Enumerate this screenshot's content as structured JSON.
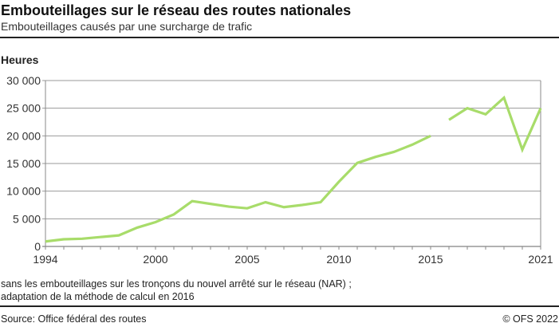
{
  "header": {
    "title": "Embouteillages sur le réseau des routes nationales",
    "subtitle": "Embouteillages causés par une surcharge de trafic"
  },
  "footer": {
    "note_line1": "sans les embouteillages sur les tronçons du nouvel arrêté sur le réseau (NAR) ;",
    "note_line2": "adaptation de la méthode de calcul en 2016",
    "source": "Source: Office fédéral des routes",
    "copyright": "© OFS 2022"
  },
  "chart_data": {
    "type": "line",
    "ylabel": "Heures",
    "xlim": [
      1994,
      2021
    ],
    "ylim": [
      0,
      30000
    ],
    "grid": true,
    "line_color": "#a8dc6a",
    "x_tick_labels": [
      "1994",
      "2000",
      "2005",
      "2010",
      "2015",
      "2021"
    ],
    "y_tick_labels": [
      "0",
      "5 000",
      "10 000",
      "15 000",
      "20 000",
      "25 000",
      "30 000"
    ],
    "series_break_after": 2015,
    "x": [
      1994,
      1995,
      1996,
      1997,
      1998,
      1999,
      2000,
      2001,
      2002,
      2003,
      2004,
      2005,
      2006,
      2007,
      2008,
      2009,
      2010,
      2011,
      2012,
      2013,
      2014,
      2015,
      2016,
      2017,
      2018,
      2019,
      2020,
      2021
    ],
    "values": [
      900,
      1300,
      1400,
      1700,
      2000,
      3400,
      4400,
      5800,
      8200,
      7700,
      7200,
      6900,
      8000,
      7100,
      7500,
      8000,
      11700,
      15100,
      16200,
      17100,
      18400,
      20000,
      22900,
      25000,
      23900,
      26900,
      17500,
      25000
    ]
  }
}
